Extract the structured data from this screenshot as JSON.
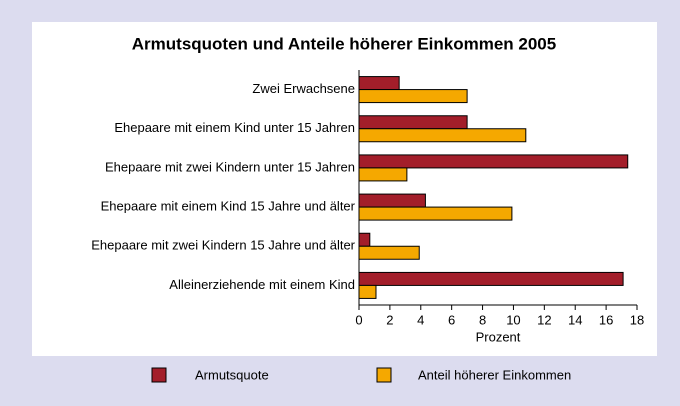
{
  "chart_data": {
    "type": "barh",
    "title": "Armutsquoten und Anteile höherer Einkommen 2005",
    "x_label": "Prozent",
    "categories": [
      "Zwei Erwachsene",
      "Ehepaare mit einem Kind unter 15 Jahren",
      "Ehepaare mit zwei Kindern unter 15 Jahren",
      "Ehepaare mit einem Kind 15 Jahre und älter",
      "Ehepaare mit zwei Kindern 15 Jahre und älter",
      "Alleinerziehende mit einem Kind"
    ],
    "series": [
      {
        "name": "Armutsquote",
        "color": "#a31e2a",
        "values": [
          2.6,
          7.0,
          17.4,
          4.3,
          0.7,
          17.1
        ]
      },
      {
        "name": "Anteil höherer Einkommen",
        "color": "#f5a800",
        "values": [
          7.0,
          10.8,
          3.1,
          9.9,
          3.9,
          1.1
        ]
      }
    ],
    "xlim": [
      0,
      18
    ],
    "xticks": [
      0,
      2,
      4,
      6,
      8,
      10,
      12,
      14,
      16,
      18
    ],
    "grid": false,
    "legend": "bottom"
  }
}
